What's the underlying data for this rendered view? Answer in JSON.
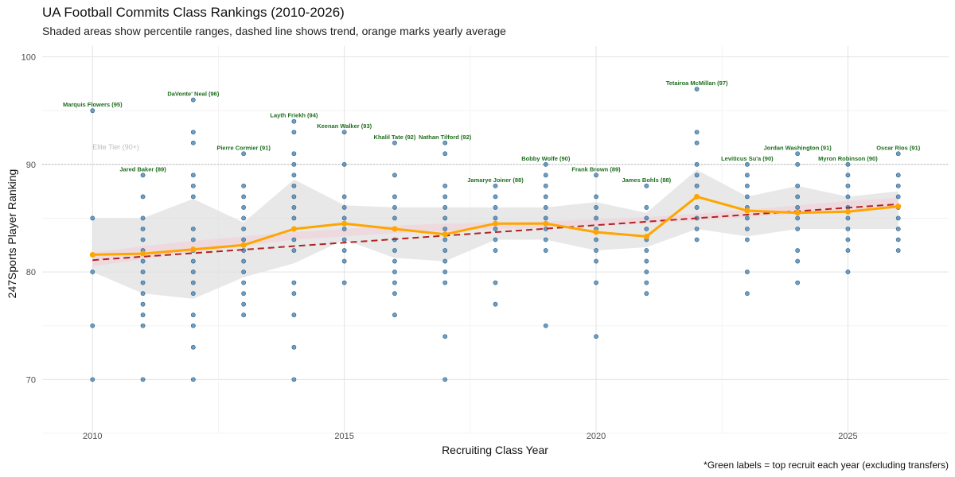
{
  "title": "UA Football Commits Class Rankings (2010-2026)",
  "subtitle": "Shaded areas show percentile ranges, dashed line shows trend, orange marks yearly average",
  "caption": "*Green labels = top recruit each year (excluding transfers)",
  "chart_data": {
    "type": "scatter",
    "xlabel": "Recruiting Class Year",
    "ylabel": "247Sports Player Ranking",
    "xlim": [
      2009,
      2027
    ],
    "ylim": [
      65,
      101
    ],
    "x_ticks": [
      2010,
      2015,
      2020,
      2025
    ],
    "y_ticks": [
      70,
      80,
      90,
      100
    ],
    "grid": true,
    "reference_line": {
      "y": 90,
      "label": "Elite Tier (90+)"
    },
    "colors": {
      "points": "#4a86b4",
      "average": "#ffa500",
      "trend": "#b22222",
      "outer_band": "#e0e0e0",
      "inner_band": "#f6c9d2",
      "top_label": "#1e6e1e"
    },
    "points": [
      {
        "year": 2010,
        "values": [
          95,
          85,
          80,
          75,
          70
        ]
      },
      {
        "year": 2011,
        "values": [
          89,
          87,
          85,
          84,
          83,
          82,
          81,
          80,
          79,
          78,
          77,
          76,
          75,
          70
        ]
      },
      {
        "year": 2012,
        "values": [
          96,
          93,
          92,
          89,
          88,
          87,
          84,
          83,
          82,
          81,
          80,
          79,
          78,
          76,
          75,
          73,
          70
        ]
      },
      {
        "year": 2013,
        "values": [
          91,
          88,
          87,
          86,
          85,
          84,
          83,
          82,
          81,
          80,
          79,
          78,
          77,
          76
        ]
      },
      {
        "year": 2014,
        "values": [
          94,
          93,
          91,
          90,
          89,
          88,
          87,
          86,
          85,
          84,
          83,
          82,
          79,
          78,
          76,
          73,
          70
        ]
      },
      {
        "year": 2015,
        "values": [
          93,
          90,
          87,
          86,
          85,
          84,
          83,
          82,
          81,
          79
        ]
      },
      {
        "year": 2016,
        "values": [
          92,
          89,
          87,
          86,
          85,
          84,
          83,
          82,
          81,
          80,
          79,
          78,
          76
        ]
      },
      {
        "year": 2017,
        "values": [
          92,
          91,
          88,
          87,
          86,
          85,
          84,
          83,
          82,
          81,
          80,
          79,
          74,
          70
        ]
      },
      {
        "year": 2018,
        "values": [
          88,
          87,
          86,
          85,
          84,
          83,
          82,
          79,
          77
        ]
      },
      {
        "year": 2019,
        "values": [
          90,
          89,
          88,
          87,
          86,
          85,
          84,
          83,
          82,
          75
        ]
      },
      {
        "year": 2020,
        "values": [
          89,
          87,
          86,
          85,
          84,
          83,
          82,
          81,
          79,
          74
        ]
      },
      {
        "year": 2021,
        "values": [
          88,
          86,
          85,
          84,
          83,
          82,
          81,
          80,
          79,
          78
        ]
      },
      {
        "year": 2022,
        "values": [
          97,
          93,
          92,
          90,
          89,
          88,
          87,
          86,
          85,
          84,
          83
        ]
      },
      {
        "year": 2023,
        "values": [
          90,
          89,
          88,
          87,
          86,
          85,
          84,
          83,
          80,
          78
        ]
      },
      {
        "year": 2024,
        "values": [
          91,
          90,
          88,
          87,
          86,
          85,
          84,
          82,
          81,
          79
        ]
      },
      {
        "year": 2025,
        "values": [
          90,
          89,
          88,
          87,
          86,
          85,
          84,
          83,
          82,
          80
        ]
      },
      {
        "year": 2026,
        "values": [
          91,
          89,
          88,
          87,
          86,
          85,
          84,
          83,
          82
        ]
      }
    ],
    "average": {
      "x": [
        2010,
        2011,
        2012,
        2013,
        2014,
        2015,
        2016,
        2017,
        2018,
        2019,
        2020,
        2021,
        2022,
        2023,
        2024,
        2025,
        2026
      ],
      "y": [
        81.6,
        81.7,
        82.1,
        82.5,
        84.0,
        84.5,
        84.0,
        83.5,
        84.5,
        84.5,
        83.7,
        83.3,
        87.0,
        85.7,
        85.5,
        85.6,
        86.1
      ]
    },
    "trend": {
      "x": [
        2010,
        2026
      ],
      "y": [
        81.1,
        86.3
      ]
    },
    "outer_band": {
      "x": [
        2010,
        2011,
        2012,
        2013,
        2014,
        2015,
        2016,
        2017,
        2018,
        2019,
        2020,
        2021,
        2022,
        2023,
        2024,
        2025,
        2026
      ],
      "low": [
        80,
        78,
        77.5,
        79.5,
        80.8,
        83.0,
        81.3,
        81.0,
        83.0,
        83.0,
        82.0,
        82.3,
        84.0,
        83.3,
        84.0,
        84.0,
        84.0
      ],
      "high": [
        85,
        85,
        86.8,
        84.6,
        88.6,
        86.2,
        86.0,
        86.0,
        86.0,
        86.0,
        86.5,
        85.5,
        89.5,
        87.0,
        88.0,
        87.0,
        87.5
      ]
    },
    "inner_band": {
      "x": [
        2010,
        2011,
        2012,
        2013,
        2014,
        2015,
        2016,
        2017,
        2018,
        2019,
        2020,
        2021,
        2022,
        2023,
        2024,
        2025,
        2026
      ],
      "low": [
        80.5,
        81.2,
        81.8,
        82.4,
        83.0,
        83.3,
        83.6,
        83.8,
        84.0,
        84.1,
        84.3,
        84.5,
        84.8,
        85.1,
        85.4,
        85.6,
        85.9
      ],
      "high": [
        81.8,
        82.4,
        82.9,
        83.3,
        83.7,
        84.0,
        84.3,
        84.5,
        84.6,
        84.7,
        84.9,
        85.1,
        85.4,
        85.8,
        86.2,
        86.6,
        86.9
      ]
    },
    "top_labels": [
      {
        "year": 2010,
        "value": 95,
        "text": "Marquis Flowers (95)"
      },
      {
        "year": 2011,
        "value": 89,
        "text": "Jared Baker (89)"
      },
      {
        "year": 2012,
        "value": 96,
        "text": "DaVonte' Neal (96)"
      },
      {
        "year": 2013,
        "value": 91,
        "text": "Pierre Cormier (91)"
      },
      {
        "year": 2014,
        "value": 94,
        "text": "Layth Friekh (94)"
      },
      {
        "year": 2015,
        "value": 93,
        "text": "Keenan Walker (93)"
      },
      {
        "year": 2016,
        "value": 92,
        "text": "Khalil Tate (92)"
      },
      {
        "year": 2017,
        "value": 92,
        "text": "Nathan Tilford (92)"
      },
      {
        "year": 2018,
        "value": 88,
        "text": "Jamarye Joiner (88)"
      },
      {
        "year": 2019,
        "value": 90,
        "text": "Bobby Wolfe (90)"
      },
      {
        "year": 2020,
        "value": 89,
        "text": "Frank Brown (89)"
      },
      {
        "year": 2021,
        "value": 88,
        "text": "James Bohls (88)"
      },
      {
        "year": 2022,
        "value": 97,
        "text": "Tetairoa McMillan (97)"
      },
      {
        "year": 2023,
        "value": 90,
        "text": "Leviticus Su'a (90)"
      },
      {
        "year": 2024,
        "value": 91,
        "text": "Jordan Washington (91)"
      },
      {
        "year": 2025,
        "value": 90,
        "text": "Myron Robinson (90)"
      },
      {
        "year": 2026,
        "value": 91,
        "text": "Oscar Rios (91)"
      }
    ]
  }
}
